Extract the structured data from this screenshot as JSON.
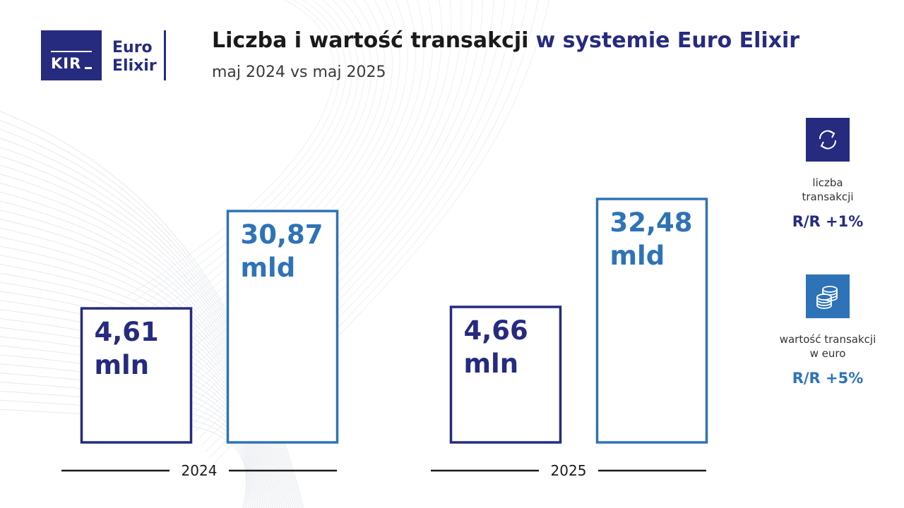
{
  "logo": {
    "kir": "KIR",
    "euro": "Euro",
    "elixir": "Elixir"
  },
  "title": {
    "part1": "Liczba i wartość transakcji",
    "part2": "w systemie Euro Elixir"
  },
  "subtitle": "maj 2024 vs maj 2025",
  "colors": {
    "count": "#262b7f",
    "value": "#2e73b7",
    "text": "#1a1a1a"
  },
  "chart_data": {
    "type": "bar",
    "categories": [
      "2024",
      "2025"
    ],
    "series": [
      {
        "key": "count",
        "unit": "mln",
        "values": [
          4.61,
          4.66
        ],
        "labels": [
          "4,61",
          "4,66"
        ]
      },
      {
        "key": "value",
        "unit": "mld",
        "values": [
          30.87,
          32.48
        ],
        "labels": [
          "30,87",
          "32,48"
        ]
      }
    ],
    "title": "",
    "xlabel": "",
    "ylabel": "",
    "grid": false,
    "legend": "none"
  },
  "kpis": [
    {
      "icon": "arrows-exchange-icon",
      "caption": [
        "liczba",
        "transakcji"
      ],
      "yoy": "R/R +1%"
    },
    {
      "icon": "coins-stack-icon",
      "caption": [
        "wartość transakcji",
        "w euro"
      ],
      "yoy": "R/R +5%"
    }
  ]
}
